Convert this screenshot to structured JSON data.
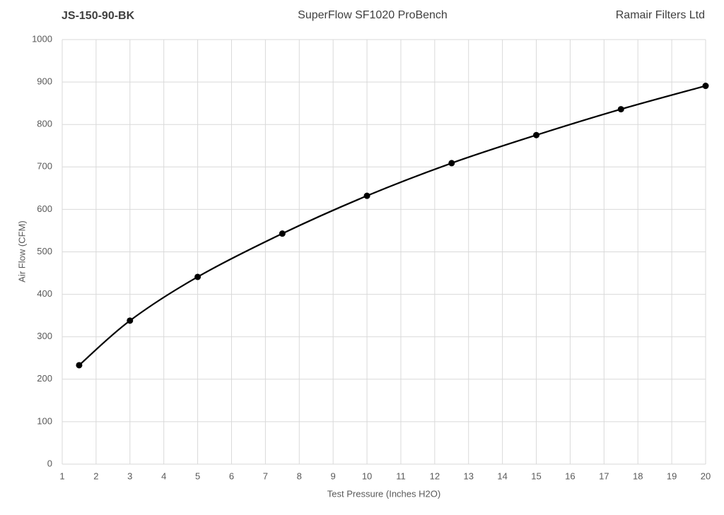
{
  "chart_data": {
    "type": "scatter",
    "title_left": "JS-150-90-BK",
    "title": "SuperFlow SF1020 ProBench",
    "title_right": "Ramair Filters Ltd",
    "x_label": "Test Pressure (Inches H2O)",
    "y_label": "Air Flow (CFM)",
    "x": [
      1.5,
      3,
      5,
      7.5,
      10,
      12.5,
      15,
      17.5,
      20
    ],
    "values": [
      233,
      338,
      441,
      543,
      632,
      709,
      775,
      836,
      891
    ],
    "color": "#000000",
    "smooth": true,
    "grid": true,
    "xlim": [
      1,
      20
    ],
    "xticks": [
      1,
      2,
      3,
      4,
      5,
      6,
      7,
      8,
      9,
      10,
      11,
      12,
      13,
      14,
      15,
      16,
      17,
      18,
      19,
      20
    ],
    "ylim": [
      0,
      1000
    ],
    "yticks": [
      0,
      100,
      200,
      300,
      400,
      500,
      600,
      700,
      800,
      900,
      1000
    ]
  }
}
